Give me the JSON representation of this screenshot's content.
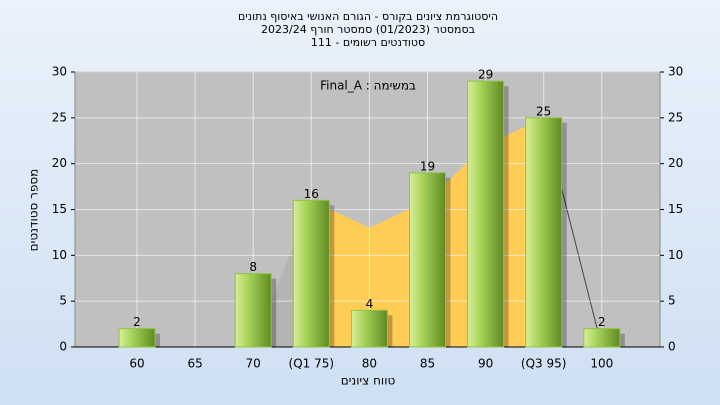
{
  "chart_data": {
    "type": "bar",
    "title": [
      "היסטוגרמת ציונים בקורס - הגורם האנושי באיסוף נתונים",
      "בסמסטר  (01/2023)  סמסטר חורף 2023/24",
      "סטודנטים רשומים - 111"
    ],
    "annotation": "Final_A : במשימה",
    "x_label": "טווח ציונים",
    "y_label": "מספר סטודנטים",
    "categories": [
      "60",
      "65",
      "70",
      "(Q1 75)",
      "80",
      "85",
      "90",
      "(Q3 95)",
      "100"
    ],
    "values": [
      2,
      null,
      8,
      16,
      4,
      19,
      29,
      25,
      2
    ],
    "color": "#8cc63f",
    "curve": {
      "values": [
        null,
        null,
        0,
        16,
        13,
        16,
        22,
        25,
        0
      ],
      "color": "#ffcc55",
      "outer_color": "#b4b4b4",
      "band": [
        3,
        7
      ]
    },
    "ylim": [
      0,
      30
    ],
    "yticks": [
      0,
      5,
      10,
      15,
      20,
      25,
      30
    ],
    "grid": true
  }
}
